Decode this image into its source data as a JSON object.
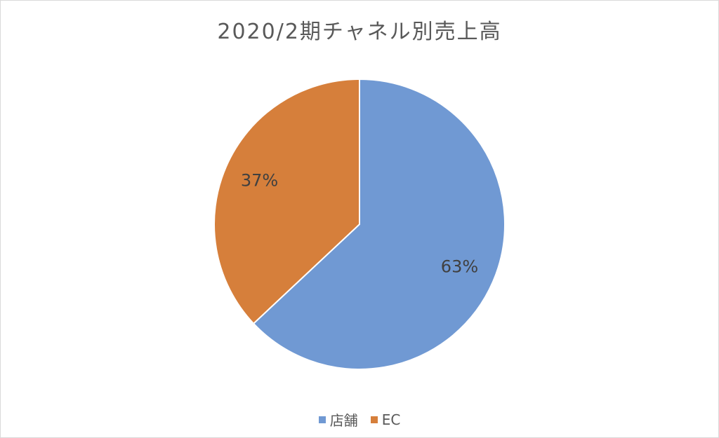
{
  "chart_data": {
    "type": "pie",
    "title": "2020/2期チャネル別売上高",
    "categories": [
      "店舗",
      "EC"
    ],
    "values": [
      63,
      37
    ],
    "data_labels": [
      "63%",
      "37%"
    ],
    "colors": [
      "#7099d3",
      "#d67f3b"
    ],
    "start_angle_deg": 0,
    "direction": "clockwise",
    "legend_position": "bottom"
  }
}
